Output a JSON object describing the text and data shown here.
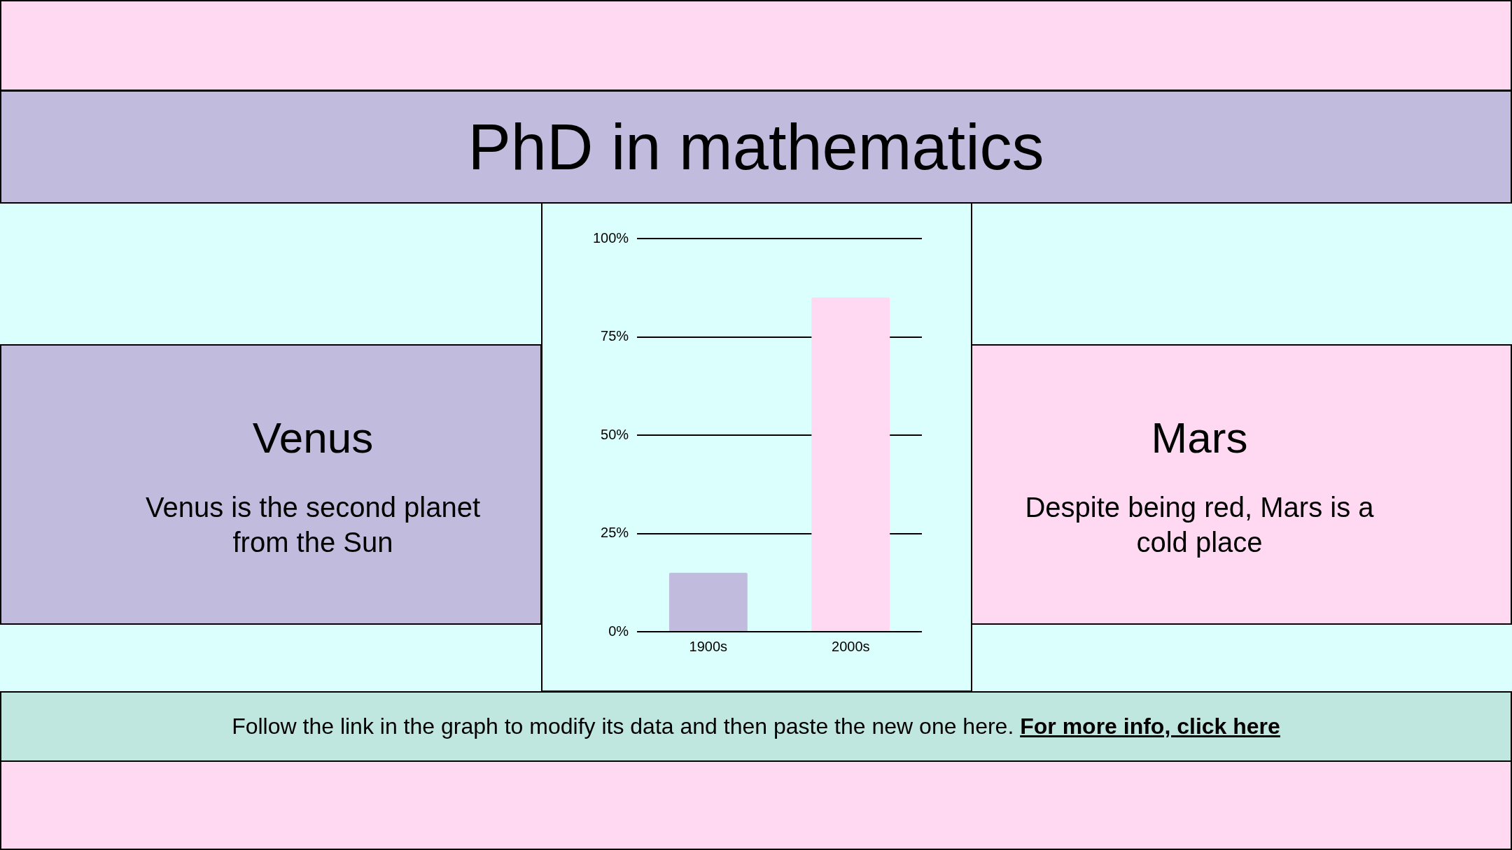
{
  "chart_data": {
    "type": "bar",
    "title": "PhD in mathematics",
    "categories": [
      "1900s",
      "2000s"
    ],
    "values": [
      15,
      85
    ],
    "colors": [
      "#c1bbde",
      "#ffd9f2"
    ],
    "ylim": [
      0,
      100
    ],
    "yticks": [
      {
        "value": 0,
        "label": "0%"
      },
      {
        "value": 25,
        "label": "25%"
      },
      {
        "value": 50,
        "label": "50%"
      },
      {
        "value": 75,
        "label": "75%"
      },
      {
        "value": 100,
        "label": "100%"
      }
    ],
    "grid": "y",
    "annotations": [
      "Venus",
      "Venus is the second planet from the Sun",
      "Mars",
      "Despite being red, Mars is a cold place",
      "Follow the link in the graph to modify its data and then paste the new one here.",
      "For more info, click here"
    ]
  }
}
